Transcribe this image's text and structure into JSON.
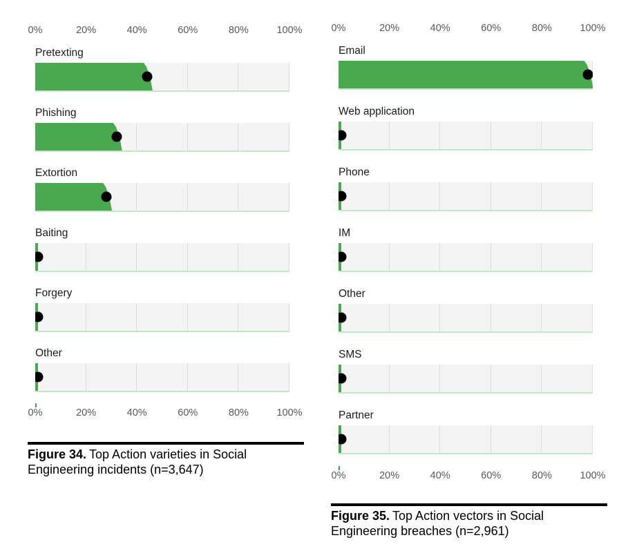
{
  "colors": {
    "bar_green": "#4aa84e",
    "dot_black": "#000000",
    "track_gray": "#f3f4f3",
    "gridline_gray": "#dddfdd",
    "baseline_light_green": "#c6e6c9",
    "axis_text_gray": "#57585a",
    "label_text": "#1a1a1a",
    "caption_rule_black": "#000000"
  },
  "charts": [
    {
      "axis_ticks": [
        "0%",
        "20%",
        "40%",
        "60%",
        "80%",
        "100%"
      ],
      "rows": [
        {
          "label": "Pretexting",
          "value": 44
        },
        {
          "label": "Phishing",
          "value": 32
        },
        {
          "label": "Extortion",
          "value": 28
        },
        {
          "label": "Baiting",
          "value": 1
        },
        {
          "label": "Forgery",
          "value": 1
        },
        {
          "label": "Other",
          "value": 1
        }
      ],
      "caption": {
        "prefix": "Figure 34.",
        "text": "Top Action varieties in Social Engineering incidents (n=3,647)"
      }
    },
    {
      "axis_ticks": [
        "0%",
        "20%",
        "40%",
        "60%",
        "80%",
        "100%"
      ],
      "rows": [
        {
          "label": "Email",
          "value": 98
        },
        {
          "label": "Web application",
          "value": 1
        },
        {
          "label": "Phone",
          "value": 1
        },
        {
          "label": "IM",
          "value": 1
        },
        {
          "label": "Other",
          "value": 1
        },
        {
          "label": "SMS",
          "value": 1
        },
        {
          "label": "Partner",
          "value": 1
        }
      ],
      "caption": {
        "prefix": "Figure 35.",
        "text": "Top Action vectors in Social Engineering breaches (n=2,961)"
      }
    }
  ],
  "chart_data": [
    {
      "type": "bar",
      "orientation": "horizontal",
      "title": "Figure 34. Top Action varieties in Social Engineering incidents (n=3,647)",
      "categories": [
        "Pretexting",
        "Phishing",
        "Extortion",
        "Baiting",
        "Forgery",
        "Other"
      ],
      "values": [
        44,
        32,
        28,
        1,
        1,
        1
      ],
      "unit": "%",
      "xlim": [
        0,
        100
      ],
      "x_tick_labels": [
        "0%",
        "20%",
        "40%",
        "60%",
        "80%",
        "100%"
      ],
      "grid": true,
      "legend": false,
      "marker": "black dot at bar end"
    },
    {
      "type": "bar",
      "orientation": "horizontal",
      "title": "Figure 35. Top Action vectors in Social Engineering breaches (n=2,961)",
      "categories": [
        "Email",
        "Web application",
        "Phone",
        "IM",
        "Other",
        "SMS",
        "Partner"
      ],
      "values": [
        98,
        1,
        1,
        1,
        1,
        1,
        1
      ],
      "unit": "%",
      "xlim": [
        0,
        100
      ],
      "x_tick_labels": [
        "0%",
        "20%",
        "40%",
        "60%",
        "80%",
        "100%"
      ],
      "grid": true,
      "legend": false,
      "marker": "black dot at bar end"
    }
  ]
}
